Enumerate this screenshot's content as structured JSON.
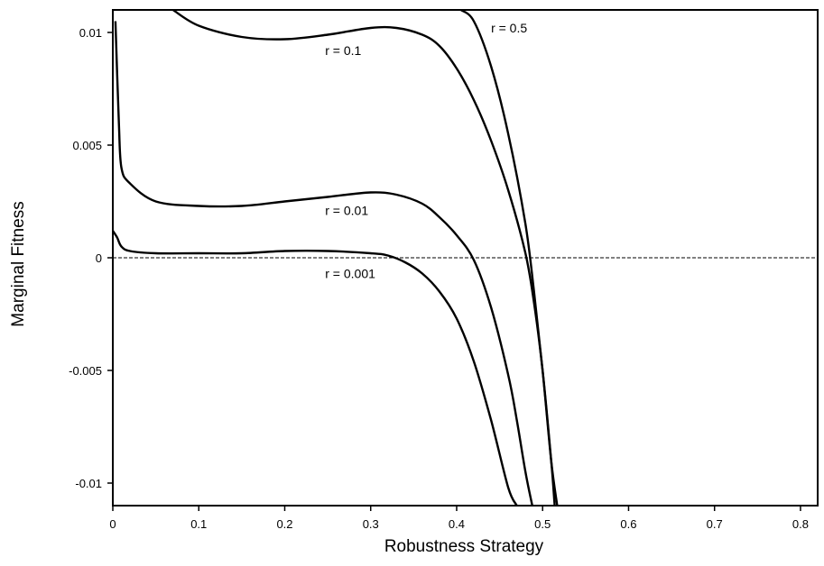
{
  "chart_data": {
    "type": "line",
    "title": "",
    "xlabel": "Robustness Strategy",
    "ylabel": "Marginal Fitness",
    "xlim": [
      0,
      0.82
    ],
    "ylim": [
      -0.011,
      0.011
    ],
    "grid": false,
    "legend": "none",
    "x_ticks": [
      0,
      0.1,
      0.2,
      0.3,
      0.4,
      0.5,
      0.6,
      0.7,
      0.8
    ],
    "x_tick_labels": [
      "0",
      "0.1",
      "0.2",
      "0.3",
      "0.4",
      "0.5",
      "0.6",
      "0.7",
      "0.8"
    ],
    "y_ticks": [
      0.01,
      0.005,
      0,
      -0.005,
      -0.01
    ],
    "y_tick_labels": [
      "0.01",
      "0.005",
      "0",
      "-0.005",
      "-0.01"
    ],
    "reference_line": {
      "y": 0,
      "style": "dashed"
    },
    "series": [
      {
        "label": "r = 0.5",
        "x": [
          0.405,
          0.42,
          0.44,
          0.46,
          0.48,
          0.49,
          0.5,
          0.51,
          0.517
        ],
        "y": [
          0.011,
          0.0105,
          0.0085,
          0.0055,
          0.0015,
          -0.0015,
          -0.005,
          -0.009,
          -0.011
        ]
      },
      {
        "label": "r = 0.1",
        "x": [
          0.07,
          0.1,
          0.15,
          0.2,
          0.25,
          0.3,
          0.33,
          0.36,
          0.38,
          0.4,
          0.42,
          0.44,
          0.46,
          0.48,
          0.49,
          0.5,
          0.51,
          0.514
        ],
        "y": [
          0.011,
          0.0103,
          0.0098,
          0.0097,
          0.0099,
          0.0102,
          0.0102,
          0.0099,
          0.0094,
          0.0084,
          0.007,
          0.0052,
          0.003,
          0.0002,
          -0.002,
          -0.005,
          -0.009,
          -0.011
        ]
      },
      {
        "label": "r = 0.01",
        "x": [
          0.003,
          0.007,
          0.01,
          0.02,
          0.05,
          0.1,
          0.15,
          0.2,
          0.25,
          0.3,
          0.33,
          0.36,
          0.38,
          0.4,
          0.42,
          0.44,
          0.46,
          0.47,
          0.48,
          0.488
        ],
        "y": [
          0.0105,
          0.006,
          0.004,
          0.0033,
          0.0025,
          0.0023,
          0.0023,
          0.0025,
          0.0027,
          0.0029,
          0.0028,
          0.0024,
          0.0018,
          0.001,
          -0.0001,
          -0.0022,
          -0.0052,
          -0.0072,
          -0.0095,
          -0.011
        ]
      },
      {
        "label": "r = 0.001",
        "x": [
          0.0,
          0.005,
          0.01,
          0.02,
          0.05,
          0.1,
          0.15,
          0.2,
          0.25,
          0.3,
          0.32,
          0.34,
          0.36,
          0.38,
          0.4,
          0.42,
          0.44,
          0.46,
          0.47
        ],
        "y": [
          0.0012,
          0.0009,
          0.0005,
          0.0003,
          0.0002,
          0.0002,
          0.0002,
          0.0003,
          0.0003,
          0.0002,
          0.0001,
          -0.0002,
          -0.0007,
          -0.0015,
          -0.0027,
          -0.0046,
          -0.0072,
          -0.0102,
          -0.011
        ]
      }
    ],
    "annotations": [
      {
        "text": "r = 0.5",
        "x": 0.44,
        "y": 0.01
      },
      {
        "text": "r = 0.1",
        "x": 0.247,
        "y": 0.009
      },
      {
        "text": "r = 0.01",
        "x": 0.247,
        "y": 0.0019
      },
      {
        "text": "r = 0.001",
        "x": 0.247,
        "y": -0.0009
      }
    ]
  }
}
